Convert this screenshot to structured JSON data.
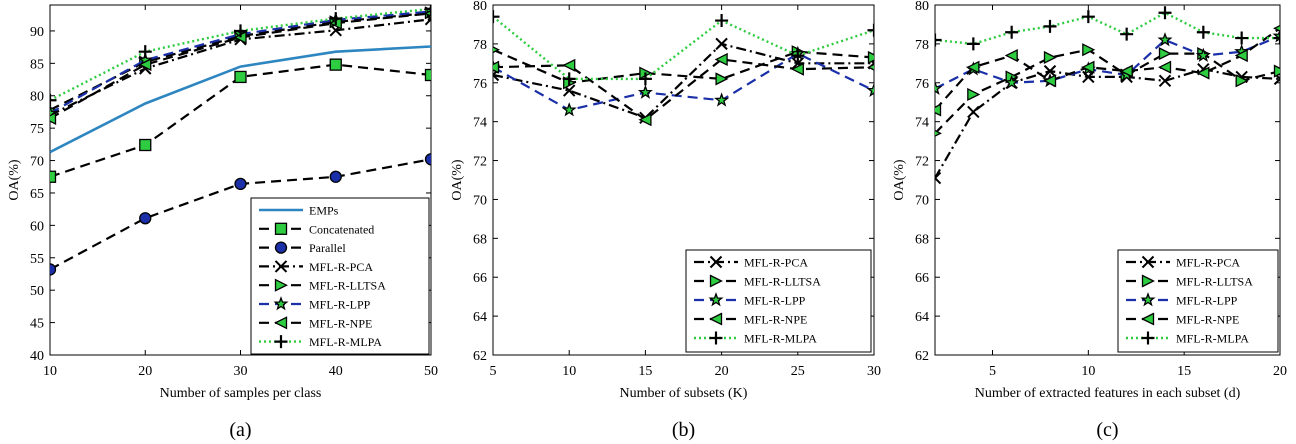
{
  "chart_data": [
    {
      "type": "line",
      "panel_label": "(a)",
      "xlabel": "Number of samples per class",
      "ylabel": "OA(%)",
      "xlim": [
        10,
        50
      ],
      "ylim": [
        40,
        94
      ],
      "xticks": [
        10,
        20,
        30,
        40,
        50
      ],
      "yticks": [
        40,
        45,
        50,
        55,
        60,
        65,
        70,
        75,
        80,
        85,
        90
      ],
      "x": [
        10,
        20,
        30,
        40,
        50
      ],
      "legend_position": "bottom-right",
      "series": [
        {
          "name": "EMPs",
          "values": [
            71.3,
            78.8,
            84.5,
            86.8,
            87.6
          ],
          "color": "#2e86c1",
          "dash": "",
          "marker": "none",
          "marker_color": "#2e86c1",
          "width": 2.6
        },
        {
          "name": "Concatenated",
          "values": [
            67.5,
            72.4,
            82.9,
            84.8,
            83.2
          ],
          "color": "#000000",
          "dash": "10,6",
          "marker": "square",
          "marker_color": "#2ecc40",
          "width": 2.2
        },
        {
          "name": "Parallel",
          "values": [
            53.2,
            61.1,
            66.4,
            67.5,
            70.2
          ],
          "color": "#000000",
          "dash": "10,6",
          "marker": "circle",
          "marker_color": "#1a2fa8",
          "width": 2.2
        },
        {
          "name": "MFL-R-PCA",
          "values": [
            77.0,
            84.2,
            88.7,
            90.1,
            91.8
          ],
          "color": "#000000",
          "dash": "10,4,2,4",
          "marker": "x",
          "marker_color": "#000000",
          "width": 2.2
        },
        {
          "name": "MFL-R-LLTSA",
          "values": [
            77.8,
            85.2,
            89.2,
            91.4,
            92.8
          ],
          "color": "#000000",
          "dash": "10,6",
          "marker": "triangle-right",
          "marker_color": "#2ecc40",
          "width": 2.2
        },
        {
          "name": "MFL-R-LPP",
          "values": [
            77.3,
            85.5,
            89.5,
            91.7,
            93.0
          ],
          "color": "#1a2fa8",
          "dash": "10,6",
          "marker": "star",
          "marker_color": "#2ecc40",
          "width": 2.2
        },
        {
          "name": "MFL-R-NPE",
          "values": [
            76.5,
            84.8,
            89.0,
            91.2,
            92.7
          ],
          "color": "#000000",
          "dash": "10,6",
          "marker": "triangle-left",
          "marker_color": "#2ecc40",
          "width": 2.2
        },
        {
          "name": "MFL-R-MLPA",
          "values": [
            79.3,
            86.8,
            90.0,
            91.9,
            93.4
          ],
          "color": "#2ecc40",
          "dash": "2,3",
          "marker": "plus",
          "marker_color": "#000000",
          "width": 2.4
        }
      ]
    },
    {
      "type": "line",
      "panel_label": "(b)",
      "xlabel": "Number of subsets (K)",
      "ylabel": "OA(%)",
      "xlim": [
        5,
        30
      ],
      "ylim": [
        62,
        80
      ],
      "xticks": [
        5,
        10,
        15,
        20,
        25,
        30
      ],
      "yticks": [
        62,
        64,
        66,
        68,
        70,
        72,
        74,
        76,
        78,
        80
      ],
      "x": [
        5,
        10,
        15,
        20,
        25,
        30
      ],
      "legend_position": "bottom-right",
      "series": [
        {
          "name": "MFL-R-PCA",
          "values": [
            76.4,
            75.6,
            74.2,
            78.0,
            77.0,
            77.0
          ],
          "color": "#000000",
          "dash": "10,4,2,4",
          "marker": "x",
          "marker_color": "#000000",
          "width": 2.2
        },
        {
          "name": "MFL-R-LLTSA",
          "values": [
            77.7,
            76.0,
            76.5,
            76.2,
            77.6,
            77.3
          ],
          "color": "#000000",
          "dash": "10,6",
          "marker": "triangle-right",
          "marker_color": "#2ecc40",
          "width": 2.2
        },
        {
          "name": "MFL-R-LPP",
          "values": [
            76.8,
            74.6,
            75.5,
            75.1,
            77.5,
            75.6
          ],
          "color": "#1a2fa8",
          "dash": "10,6",
          "marker": "star",
          "marker_color": "#2ecc40",
          "width": 2.2
        },
        {
          "name": "MFL-R-NPE",
          "values": [
            76.8,
            76.9,
            74.1,
            77.2,
            76.7,
            76.8
          ],
          "color": "#000000",
          "dash": "10,6",
          "marker": "triangle-left",
          "marker_color": "#2ecc40",
          "width": 2.2
        },
        {
          "name": "MFL-R-MLPA",
          "values": [
            79.4,
            76.2,
            76.2,
            79.2,
            77.4,
            78.7
          ],
          "color": "#2ecc40",
          "dash": "2,3",
          "marker": "plus",
          "marker_color": "#000000",
          "width": 2.4
        }
      ]
    },
    {
      "type": "line",
      "panel_label": "(c)",
      "xlabel": "Number of extracted features in each subset (d)",
      "ylabel": "OA(%)",
      "xlim": [
        2,
        20
      ],
      "ylim": [
        62,
        80
      ],
      "xticks": [
        5,
        10,
        15,
        20
      ],
      "yticks": [
        62,
        64,
        66,
        68,
        70,
        72,
        74,
        76,
        78,
        80
      ],
      "x": [
        2,
        4,
        6,
        8,
        10,
        12,
        14,
        16,
        18,
        20
      ],
      "legend_position": "bottom-right",
      "series": [
        {
          "name": "MFL-R-PCA",
          "values": [
            71.1,
            74.5,
            76.0,
            76.6,
            76.3,
            76.3,
            76.1,
            76.7,
            76.3,
            76.2
          ],
          "color": "#000000",
          "dash": "10,4,2,4",
          "marker": "x",
          "marker_color": "#000000",
          "width": 2.2
        },
        {
          "name": "MFL-R-LLTSA",
          "values": [
            73.4,
            75.4,
            76.3,
            77.3,
            77.7,
            76.4,
            77.5,
            77.5,
            76.1,
            76.6
          ],
          "color": "#000000",
          "dash": "10,6",
          "marker": "triangle-right",
          "marker_color": "#2ecc40",
          "width": 2.2
        },
        {
          "name": "MFL-R-LPP",
          "values": [
            75.7,
            76.7,
            76.0,
            76.1,
            76.7,
            76.4,
            78.2,
            77.4,
            77.6,
            78.4
          ],
          "color": "#1a2fa8",
          "dash": "10,6",
          "marker": "star",
          "marker_color": "#2ecc40",
          "width": 2.2
        },
        {
          "name": "MFL-R-NPE",
          "values": [
            74.6,
            76.8,
            77.4,
            76.1,
            76.8,
            76.6,
            76.8,
            76.5,
            77.4,
            78.8
          ],
          "color": "#000000",
          "dash": "10,6",
          "marker": "triangle-left",
          "marker_color": "#2ecc40",
          "width": 2.2
        },
        {
          "name": "MFL-R-MLPA",
          "values": [
            78.2,
            78.0,
            78.6,
            78.9,
            79.4,
            78.5,
            79.6,
            78.6,
            78.3,
            78.3
          ],
          "color": "#2ecc40",
          "dash": "2,3",
          "marker": "plus",
          "marker_color": "#000000",
          "width": 2.4
        }
      ]
    }
  ]
}
